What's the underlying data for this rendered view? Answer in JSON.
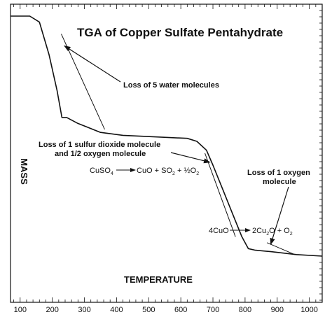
{
  "chart_data": {
    "type": "line",
    "title": "TGA of Copper Sulfate Pentahydrate",
    "xlabel": "TEMPERATURE",
    "ylabel": "MASS",
    "xlim": [
      70,
      1040
    ],
    "x_ticks": [
      100,
      200,
      300,
      400,
      500,
      600,
      700,
      800,
      900,
      1000
    ],
    "grid": false,
    "y_values_relative": true,
    "series": [
      {
        "x": [
          70,
          130,
          160,
          190,
          215,
          230,
          245,
          280,
          350,
          420,
          520,
          620,
          650,
          680,
          700,
          730,
          760,
          790,
          810,
          830,
          880,
          960,
          1040
        ],
        "y": [
          0.96,
          0.96,
          0.94,
          0.83,
          0.71,
          0.62,
          0.62,
          0.6,
          0.57,
          0.56,
          0.555,
          0.55,
          0.54,
          0.51,
          0.46,
          0.38,
          0.3,
          0.22,
          0.18,
          0.175,
          0.17,
          0.16,
          0.155
        ]
      }
    ],
    "tangent_lines": [
      {
        "x": [
          228,
          363
        ],
        "y": [
          0.9,
          0.58
        ]
      },
      {
        "x": [
          675,
          770
        ],
        "y": [
          0.5,
          0.22
        ]
      },
      {
        "x": [
          868,
          955
        ],
        "y": [
          0.2,
          0.16
        ]
      }
    ],
    "annotations": [
      {
        "text": "Loss of 5 water molecules",
        "lines": [
          "Loss of 5 water molecules"
        ],
        "points_to": [
          238,
          0.86
        ]
      },
      {
        "text": "Loss of 1 sulfur dioxide molecule and 1/2 oxygen molecule",
        "lines": [
          "Loss of 1 sulfur dioxide molecule",
          "and 1/2 oxygen molecule"
        ],
        "points_to": [
          690,
          0.47
        ]
      },
      {
        "text": "Loss of 1 oxygen molecule",
        "lines": [
          "Loss of 1 oxygen",
          "molecule"
        ],
        "points_to": [
          880,
          0.195
        ]
      }
    ],
    "equations": [
      {
        "parts": [
          "CuSO",
          "4",
          "CuO + SO",
          "2",
          " + ½O",
          "2"
        ]
      },
      {
        "parts": [
          "4CuO",
          "2Cu",
          "2",
          "O + O",
          "2"
        ]
      }
    ]
  }
}
